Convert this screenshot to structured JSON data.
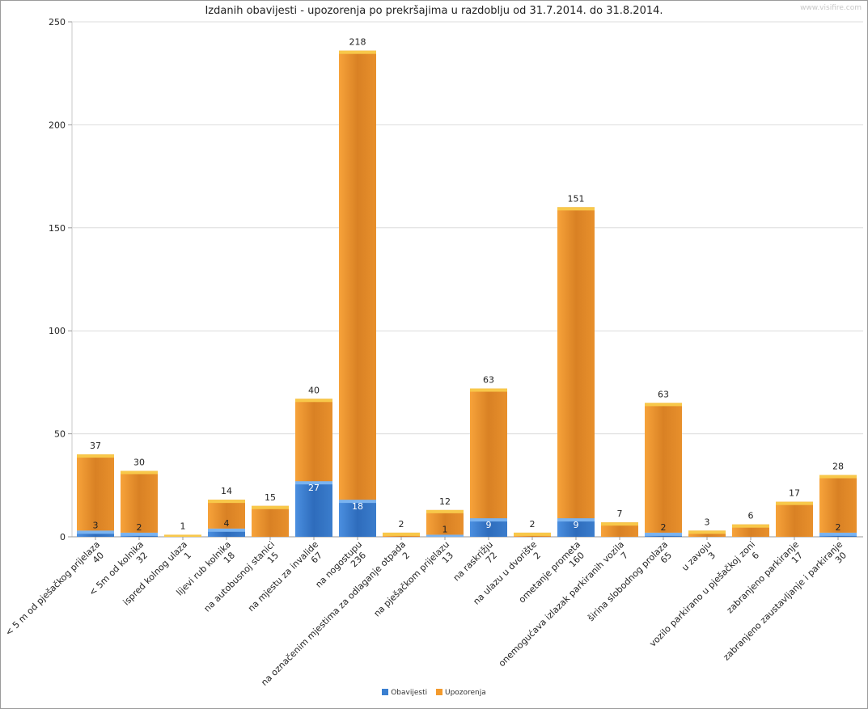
{
  "chart_data": {
    "type": "bar",
    "stacked": true,
    "title": "Izdanih obavijesti - upozorenja po prekršajima u razdoblju od 31.7.2014. do 31.8.2014.",
    "watermark": "www.visifire.com",
    "ylim": [
      0,
      250
    ],
    "yticks": [
      0,
      50,
      100,
      150,
      200,
      250
    ],
    "grid": true,
    "legend_position": "bottom-center",
    "categories": [
      {
        "total": "40",
        "name": "< 5 m od pješačkog prijelaza"
      },
      {
        "total": "32",
        "name": "< 5m od kolnika"
      },
      {
        "total": "1",
        "name": "ispred kolnog ulaza"
      },
      {
        "total": "18",
        "name": "lijevi rub kolnika"
      },
      {
        "total": "15",
        "name": "na autobusnoj stanici"
      },
      {
        "total": "67",
        "name": "na mjestu za invalide"
      },
      {
        "total": "236",
        "name": "na nogostupu"
      },
      {
        "total": "2",
        "name": "na označenim mjestima za odlaganje otpada"
      },
      {
        "total": "13",
        "name": "na pješačkom prijelazu"
      },
      {
        "total": "72",
        "name": "na raskrižju"
      },
      {
        "total": "2",
        "name": "na ulazu u dvorište"
      },
      {
        "total": "160",
        "name": "ometanje prometa"
      },
      {
        "total": "7",
        "name": "onemogućava izlazak parkiranih vozila"
      },
      {
        "total": "65",
        "name": "širina slobodnog prolaza"
      },
      {
        "total": "3",
        "name": "u zavoju"
      },
      {
        "total": "6",
        "name": "vozilo parkirano u pješačkoj zoni"
      },
      {
        "total": "17",
        "name": "zabranjeno  parkiranje"
      },
      {
        "total": "30",
        "name": "zabranjeno zaustavljanje i parkiranje"
      }
    ],
    "series": [
      {
        "name": "Obavijesti",
        "color": "#3a7fd0",
        "values": [
          3,
          2,
          0,
          4,
          0,
          27,
          18,
          0,
          1,
          9,
          0,
          9,
          0,
          2,
          0,
          0,
          0,
          2
        ],
        "labels": [
          "3",
          "2",
          "",
          "4",
          "",
          "27",
          "18",
          "",
          "1",
          "9",
          "",
          "9",
          "",
          "2",
          "",
          "",
          "",
          "2"
        ]
      },
      {
        "name": "Upozorenja",
        "color": "#f39a2c",
        "values": [
          37,
          30,
          1,
          14,
          15,
          40,
          218,
          2,
          12,
          63,
          2,
          151,
          7,
          63,
          3,
          6,
          17,
          28
        ],
        "labels": [
          "37",
          "30",
          "1",
          "14",
          "15",
          "40",
          "218",
          "2",
          "12",
          "63",
          "2",
          "151",
          "7",
          "63",
          "3",
          "6",
          "17",
          "28"
        ]
      }
    ]
  }
}
